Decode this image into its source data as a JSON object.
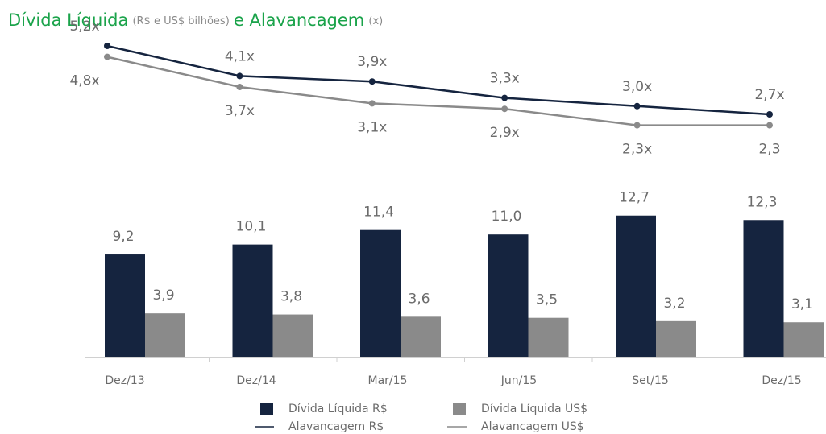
{
  "chart_data": {
    "type": "bar",
    "title": [
      "Dívida Líquida",
      "(R$ e US$ bilhões)",
      "e Alavancagem",
      "(x)"
    ],
    "categories": [
      "Dez/13",
      "Dez/14",
      "Mar/15",
      "Jun/15",
      "Set/15",
      "Dez/15"
    ],
    "series": [
      {
        "name": "Dívida Líquida R$",
        "color": "#15243f",
        "values": [
          9.2,
          10.1,
          11.4,
          11.0,
          12.7,
          12.3
        ],
        "value_labels": [
          "9,2",
          "10,1",
          "11,4",
          "11,0",
          "12,7",
          "12,3"
        ]
      },
      {
        "name": "Dívida Líquida US$",
        "color": "#8a8a8a",
        "values": [
          3.9,
          3.8,
          3.6,
          3.5,
          3.2,
          3.1
        ],
        "value_labels": [
          "3,9",
          "3,8",
          "3,6",
          "3,5",
          "3,2",
          "3,1"
        ]
      },
      {
        "name": "Alavancagem R$",
        "type": "line",
        "axis": "y2",
        "color": "#15243f",
        "values": [
          5.2,
          4.1,
          3.9,
          3.3,
          3.0,
          2.7
        ],
        "value_labels": [
          "5,2x",
          "4,1x",
          "3,9x",
          "3,3x",
          "3,0x",
          "2,7x"
        ]
      },
      {
        "name": "Alavancagem US$",
        "type": "line",
        "axis": "y2",
        "color": "#8a8a8a",
        "values": [
          4.8,
          3.7,
          3.1,
          2.9,
          2.3,
          2.3
        ],
        "value_labels": [
          "4,8x",
          "3,7x",
          "3,1x",
          "2,9x",
          "2,3x",
          "2,3"
        ]
      }
    ]
  }
}
